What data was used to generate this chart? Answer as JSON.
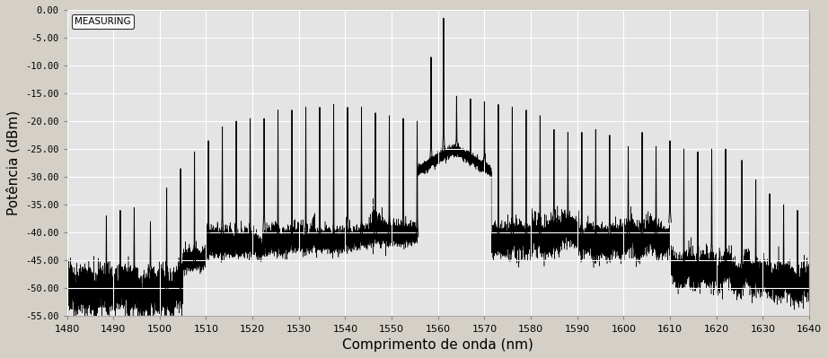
{
  "xlabel": "Comprimento de onda (nm)",
  "ylabel": "Potência (dBm)",
  "xlim": [
    1480,
    1640
  ],
  "ylim": [
    -55,
    0
  ],
  "yticks": [
    0,
    -5,
    -10,
    -15,
    -20,
    -25,
    -30,
    -35,
    -40,
    -45,
    -50,
    -55
  ],
  "xticks": [
    1480,
    1490,
    1500,
    1510,
    1520,
    1530,
    1540,
    1550,
    1560,
    1570,
    1580,
    1590,
    1600,
    1610,
    1620,
    1630,
    1640
  ],
  "legend_label": "MEASURING",
  "bg_color": "#d4d0c8",
  "plot_bg_color": "#e4e4e4",
  "line_color": "#000000",
  "grid_color": "#ffffff",
  "peaks": [
    [
      1488.5,
      -37.0
    ],
    [
      1491.5,
      -36.0
    ],
    [
      1494.5,
      -35.5
    ],
    [
      1498.0,
      -38.0
    ],
    [
      1501.5,
      -32.0
    ],
    [
      1504.5,
      -28.5
    ],
    [
      1507.5,
      -25.5
    ],
    [
      1510.5,
      -23.5
    ],
    [
      1513.5,
      -21.0
    ],
    [
      1516.5,
      -20.0
    ],
    [
      1519.5,
      -19.5
    ],
    [
      1522.5,
      -19.5
    ],
    [
      1525.5,
      -18.0
    ],
    [
      1528.5,
      -18.0
    ],
    [
      1531.5,
      -17.5
    ],
    [
      1534.5,
      -17.5
    ],
    [
      1537.5,
      -17.0
    ],
    [
      1540.5,
      -17.5
    ],
    [
      1543.5,
      -17.5
    ],
    [
      1546.5,
      -18.5
    ],
    [
      1549.5,
      -19.0
    ],
    [
      1552.5,
      -19.5
    ],
    [
      1555.5,
      -20.0
    ],
    [
      1558.5,
      -8.5
    ],
    [
      1561.2,
      -1.5
    ],
    [
      1564.0,
      -15.5
    ],
    [
      1567.0,
      -16.0
    ],
    [
      1570.0,
      -16.5
    ],
    [
      1573.0,
      -17.0
    ],
    [
      1576.0,
      -17.5
    ],
    [
      1579.0,
      -18.0
    ],
    [
      1582.0,
      -19.0
    ],
    [
      1585.0,
      -21.5
    ],
    [
      1588.0,
      -22.0
    ],
    [
      1591.0,
      -22.0
    ],
    [
      1594.0,
      -21.5
    ],
    [
      1597.0,
      -22.5
    ],
    [
      1601.0,
      -24.5
    ],
    [
      1604.0,
      -22.0
    ],
    [
      1607.0,
      -24.5
    ],
    [
      1610.0,
      -23.5
    ],
    [
      1613.0,
      -25.0
    ],
    [
      1616.0,
      -25.5
    ],
    [
      1619.0,
      -25.0
    ],
    [
      1622.0,
      -25.0
    ],
    [
      1625.5,
      -27.0
    ],
    [
      1628.5,
      -30.5
    ],
    [
      1631.5,
      -33.0
    ],
    [
      1634.5,
      -35.0
    ],
    [
      1637.5,
      -36.0
    ]
  ],
  "noise_regions": [
    {
      "start": 1480,
      "end": 1510,
      "base": -50,
      "var": 2.0,
      "trend": 0
    },
    {
      "start": 1510,
      "end": 1558,
      "base": -42,
      "var": 1.5,
      "trend": 0
    },
    {
      "start": 1558,
      "end": 1571,
      "base": -31,
      "var": 1.5,
      "trend": 0
    },
    {
      "start": 1571,
      "end": 1610,
      "base": -41,
      "var": 1.5,
      "trend": 0
    },
    {
      "start": 1610,
      "end": 1640,
      "base": -46,
      "var": 1.5,
      "trend": -0.1
    }
  ]
}
